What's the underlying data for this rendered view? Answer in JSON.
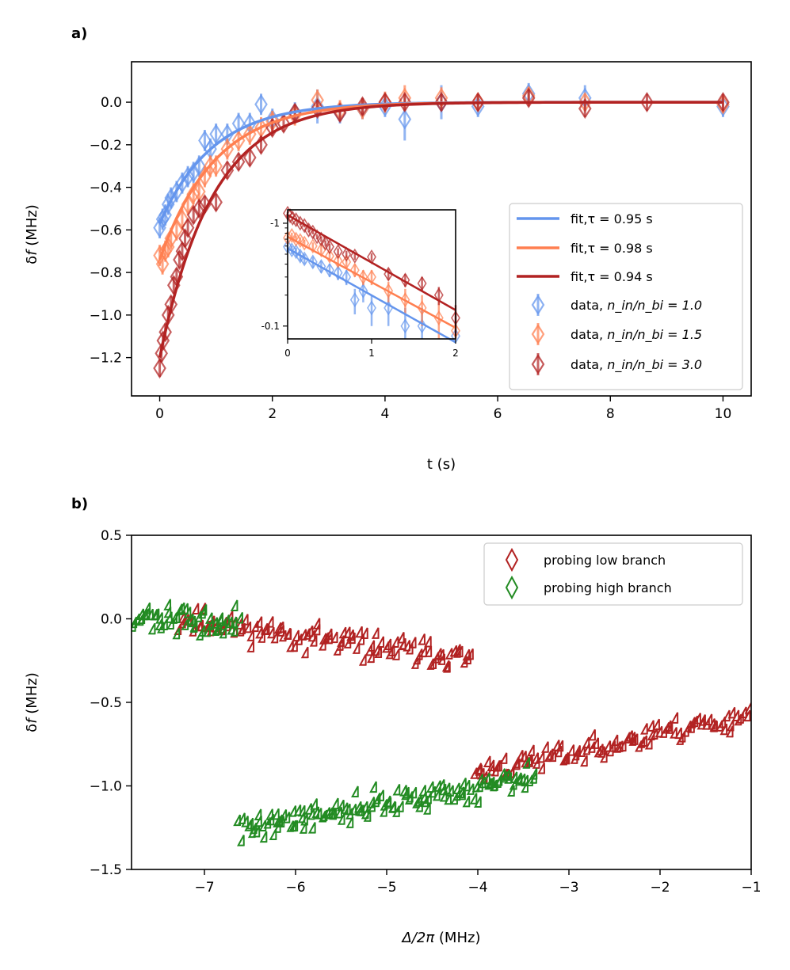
{
  "colors": {
    "blue": "#6495ED",
    "orange": "#FF7F50",
    "darkred": "#B22222",
    "green": "#228B22"
  },
  "chart_data": [
    {
      "id": "a",
      "type": "scatter",
      "panel_label": "a)",
      "xlabel": "t (s)",
      "ylabel_prefix": "δ",
      "ylabel_var": "f",
      "ylabel_suffix": " (MHz)",
      "xlim": [
        -0.5,
        10.5
      ],
      "ylim": [
        -1.38,
        0.19
      ],
      "xticks": [
        0,
        2,
        4,
        6,
        8,
        10
      ],
      "yticks": [
        0.0,
        -0.2,
        -0.4,
        -0.6,
        -0.8,
        -1.0,
        -1.2
      ],
      "xtick_labels": [
        "0",
        "2",
        "4",
        "6",
        "8",
        "10"
      ],
      "ytick_labels": [
        "0.0",
        "−0.2",
        "−0.4",
        "−0.6",
        "−0.8",
        "−1.0",
        "−1.2"
      ],
      "legend_position": "lower-right",
      "series": [
        {
          "name": "data, n_in/n_bi = 1.0",
          "legend_prefix": "data, ",
          "legend_math": "n_in/n_bi = 1.0",
          "fit_label": "fit,τ = 0.95 s",
          "color_key": "blue",
          "fit_tau": 0.95,
          "fit_A": -0.57,
          "t": [
            0.0,
            0.05,
            0.1,
            0.15,
            0.2,
            0.3,
            0.4,
            0.5,
            0.6,
            0.7,
            0.8,
            0.9,
            1.0,
            1.2,
            1.4,
            1.6,
            1.8,
            2.0,
            2.4,
            2.8,
            3.2,
            3.6,
            4.0,
            4.35,
            5.0,
            5.65,
            6.55,
            7.55,
            10.0
          ],
          "y": [
            -0.59,
            -0.55,
            -0.53,
            -0.48,
            -0.45,
            -0.42,
            -0.38,
            -0.35,
            -0.33,
            -0.3,
            -0.18,
            -0.22,
            -0.15,
            -0.15,
            -0.1,
            -0.1,
            -0.01,
            -0.08,
            -0.05,
            -0.02,
            -0.05,
            -0.03,
            -0.02,
            -0.08,
            0.0,
            -0.02,
            0.04,
            0.02,
            -0.02
          ],
          "err": [
            0.05,
            0.05,
            0.05,
            0.05,
            0.05,
            0.05,
            0.05,
            0.05,
            0.05,
            0.05,
            0.05,
            0.05,
            0.05,
            0.05,
            0.05,
            0.05,
            0.05,
            0.05,
            0.05,
            0.08,
            0.05,
            0.05,
            0.05,
            0.1,
            0.08,
            0.05,
            0.05,
            0.06,
            0.05
          ]
        },
        {
          "name": "data, n_in/n_bi = 1.5",
          "legend_prefix": "data, ",
          "legend_math": "n_in/n_bi = 1.5",
          "fit_label": "fit,τ = 0.98 s",
          "color_key": "orange",
          "fit_tau": 0.98,
          "fit_A": -0.74,
          "t": [
            0.0,
            0.05,
            0.1,
            0.15,
            0.2,
            0.3,
            0.4,
            0.5,
            0.6,
            0.7,
            0.8,
            0.9,
            1.0,
            1.2,
            1.4,
            1.6,
            1.8,
            2.0,
            2.4,
            2.8,
            3.2,
            3.6,
            4.0,
            4.35,
            5.0,
            5.65,
            6.55,
            7.55,
            10.0
          ],
          "y": [
            -0.72,
            -0.76,
            -0.7,
            -0.68,
            -0.64,
            -0.6,
            -0.55,
            -0.48,
            -0.43,
            -0.42,
            -0.35,
            -0.3,
            -0.3,
            -0.22,
            -0.18,
            -0.15,
            -0.12,
            -0.09,
            -0.06,
            0.01,
            -0.04,
            -0.03,
            0.0,
            0.02,
            0.02,
            0.0,
            0.03,
            0.0,
            -0.01
          ],
          "err": [
            0.05,
            0.05,
            0.05,
            0.05,
            0.05,
            0.05,
            0.05,
            0.05,
            0.05,
            0.05,
            0.05,
            0.05,
            0.05,
            0.05,
            0.05,
            0.05,
            0.05,
            0.05,
            0.05,
            0.05,
            0.05,
            0.05,
            0.05,
            0.06,
            0.05,
            0.04,
            0.04,
            0.04,
            0.04
          ]
        },
        {
          "name": "data, n_in/n_bi = 3.0",
          "legend_prefix": "data, ",
          "legend_math": "n_in/n_bi = 3.0",
          "fit_label": "fit,τ = 0.94 s",
          "color_key": "darkred",
          "fit_tau": 0.94,
          "fit_A": -1.2,
          "t": [
            0.0,
            0.03,
            0.06,
            0.1,
            0.15,
            0.2,
            0.25,
            0.3,
            0.35,
            0.4,
            0.45,
            0.5,
            0.6,
            0.7,
            0.8,
            1.0,
            1.2,
            1.4,
            1.6,
            1.8,
            2.0,
            2.2,
            2.4,
            2.8,
            3.2,
            3.6,
            4.0,
            4.35,
            5.0,
            5.65,
            6.55,
            7.55,
            8.65,
            10.0
          ],
          "y": [
            -1.25,
            -1.18,
            -1.12,
            -1.08,
            -1.0,
            -0.95,
            -0.86,
            -0.82,
            -0.74,
            -0.7,
            -0.64,
            -0.59,
            -0.53,
            -0.5,
            -0.48,
            -0.47,
            -0.32,
            -0.28,
            -0.26,
            -0.2,
            -0.12,
            -0.1,
            -0.05,
            -0.03,
            -0.05,
            -0.02,
            0.0,
            0.0,
            0.0,
            0.0,
            0.02,
            -0.03,
            0.0,
            0.0
          ],
          "err": [
            0.04,
            0.04,
            0.04,
            0.04,
            0.04,
            0.04,
            0.04,
            0.04,
            0.04,
            0.04,
            0.04,
            0.04,
            0.04,
            0.04,
            0.04,
            0.04,
            0.04,
            0.04,
            0.04,
            0.04,
            0.04,
            0.04,
            0.04,
            0.04,
            0.04,
            0.04,
            0.04,
            0.04,
            0.04,
            0.04,
            0.04,
            0.04,
            0.04,
            0.04
          ]
        }
      ],
      "inset": {
        "type": "line",
        "yscale": "log",
        "xlim": [
          0,
          2
        ],
        "ylim": [
          0.075,
          1.35
        ],
        "xticks": [
          0,
          1,
          2
        ],
        "xtick_labels": [
          "0",
          "1",
          "2"
        ],
        "yticks": [
          0.1,
          1.0
        ],
        "ytick_labels": [
          "-0.1",
          "-1"
        ]
      }
    },
    {
      "id": "b",
      "type": "scatter",
      "panel_label": "b)",
      "xlabel_math": "Δ/2π",
      "xlabel_suffix": " (MHz)",
      "ylabel_prefix": "δ",
      "ylabel_var": "f",
      "ylabel_suffix": " (MHz)",
      "xlim": [
        -7.8,
        -1.0
      ],
      "ylim": [
        -1.5,
        0.5
      ],
      "xticks": [
        -7,
        -6,
        -5,
        -4,
        -3,
        -2,
        -1
      ],
      "yticks": [
        0.5,
        0.0,
        -0.5,
        -1.0,
        -1.5
      ],
      "xtick_labels": [
        "−7",
        "−6",
        "−5",
        "−4",
        "−3",
        "−2",
        "−1"
      ],
      "ytick_labels": [
        "0.5",
        "0.0",
        "−0.5",
        "−1.0",
        "−1.5"
      ],
      "legend_position": "upper-right",
      "series": [
        {
          "name": "probing low branch",
          "color_key": "darkred",
          "segments": [
            {
              "x0": -7.25,
              "x1": -4.05,
              "y0": -0.03,
              "y1": -0.27,
              "noise": 0.06,
              "n": 120,
              "seed": 11
            },
            {
              "x0": -4.0,
              "x1": -1.0,
              "y0": -0.95,
              "y1": -0.6,
              "noise": 0.055,
              "n": 110,
              "seed": 23
            }
          ]
        },
        {
          "name": "probing high branch",
          "color_key": "green",
          "segments": [
            {
              "x0": -7.75,
              "x1": -6.6,
              "y0": -0.02,
              "y1": -0.06,
              "noise": 0.06,
              "n": 55,
              "seed": 37
            },
            {
              "x0": -6.6,
              "x1": -3.35,
              "y0": -1.28,
              "y1": -0.98,
              "noise": 0.06,
              "n": 140,
              "seed": 41
            }
          ]
        }
      ]
    }
  ]
}
